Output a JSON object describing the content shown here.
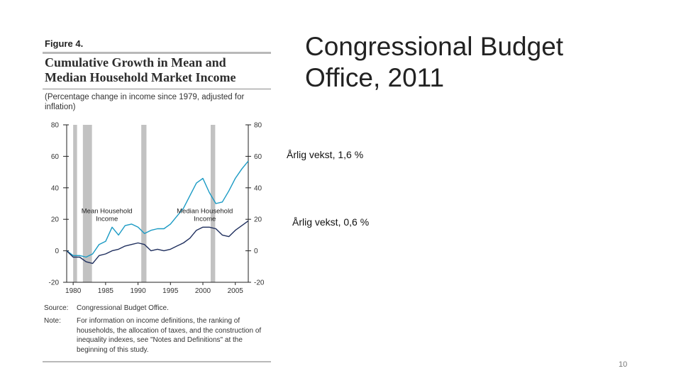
{
  "slide": {
    "heading": "Congressional Budget Office, 2011",
    "note_mean": "Årlig vekst, 1,6 %",
    "note_median": "Årlig vekst, 0,6 %",
    "page_number": "10"
  },
  "figure": {
    "label": "Figure 4.",
    "title": "Cumulative Growth in Mean and\nMedian Household Market Income",
    "subtitle": "(Percentage change in income since 1979, adjusted for inflation)",
    "source_key": "Source:",
    "source_text": "Congressional Budget Office.",
    "note_key": "Note:",
    "note_text": "For information on income definitions, the ranking of households, the allocation of taxes, and the construction of inequality indexes, see \"Notes and Definitions\" at the beginning of this study."
  },
  "colors": {
    "mean": "#1a9ac4",
    "median": "#1f2f5e",
    "recession": "#c2c2c2",
    "axis": "#222222"
  },
  "chart_data": {
    "type": "line",
    "title": "Cumulative Growth in Mean and Median Household Market Income",
    "xlabel": "",
    "ylabel": "Percentage change in income since 1979",
    "xlim": [
      1979,
      2007
    ],
    "ylim": [
      -20,
      80
    ],
    "x_ticks": [
      1980,
      1985,
      1990,
      1995,
      2000,
      2005
    ],
    "x_tick_labels": [
      "1980",
      "1985",
      "1990",
      "1995",
      "2000",
      "2005"
    ],
    "y_ticks": [
      -20,
      0,
      20,
      40,
      60,
      80
    ],
    "y_tick_labels": [
      "-20",
      "0",
      "20",
      "40",
      "60",
      "80"
    ],
    "recessions": [
      [
        1980.0,
        1980.6
      ],
      [
        1981.5,
        1982.9
      ],
      [
        1990.5,
        1991.3
      ],
      [
        2001.2,
        2001.9
      ]
    ],
    "x": [
      1979,
      1980,
      1981,
      1982,
      1983,
      1984,
      1985,
      1986,
      1987,
      1988,
      1989,
      1990,
      1991,
      1992,
      1993,
      1994,
      1995,
      1996,
      1997,
      1998,
      1999,
      2000,
      2001,
      2002,
      2003,
      2004,
      2005,
      2006,
      2007
    ],
    "series": [
      {
        "name": "Mean Household Income",
        "label": "Mean Household\nIncome",
        "values": [
          0,
          -3,
          -3,
          -4,
          -2,
          4,
          6,
          15,
          10,
          16,
          17,
          15,
          11,
          13,
          14,
          14,
          17,
          22,
          27,
          35,
          43,
          46,
          37,
          30,
          31,
          38,
          46,
          52,
          57
        ]
      },
      {
        "name": "Median Household Income",
        "label": "Median Household\nIncome",
        "values": [
          0,
          -4,
          -4,
          -7,
          -8,
          -3,
          -2,
          0,
          1,
          3,
          4,
          5,
          4,
          0,
          1,
          0,
          1,
          3,
          5,
          8,
          13,
          15,
          15,
          14,
          10,
          9,
          13,
          16,
          19
        ]
      }
    ]
  }
}
